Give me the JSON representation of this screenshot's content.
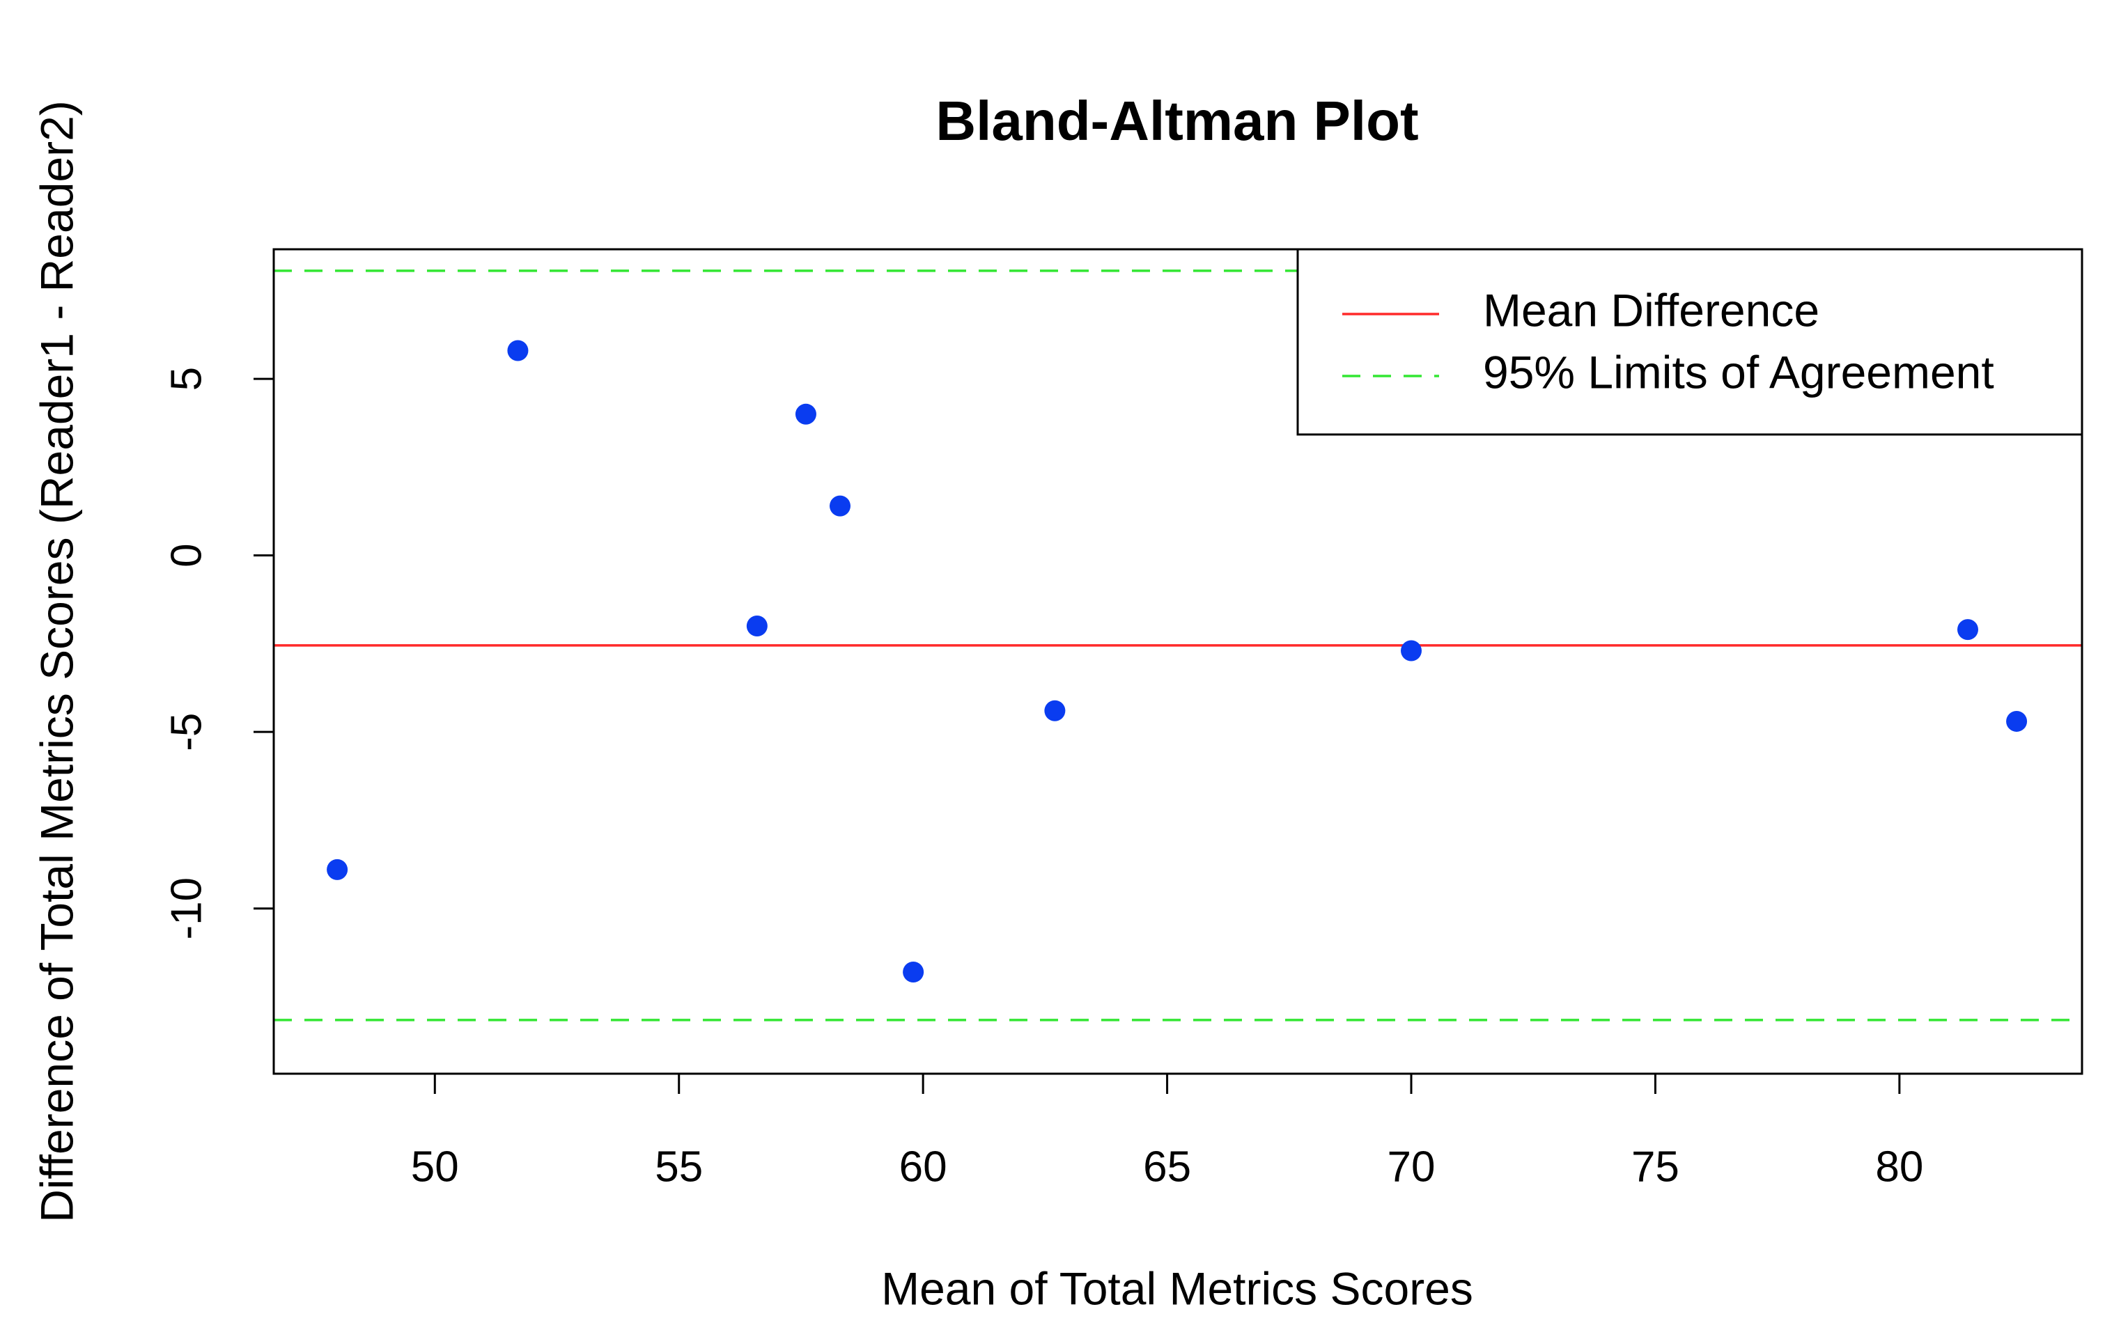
{
  "chart_data": {
    "type": "scatter",
    "title": "Bland-Altman Plot",
    "x_label": "Mean of Total Metrics Scores",
    "y_label": "Difference of Total Metrics Scores (Reader1 - Reader2)",
    "x": [
      48.0,
      51.7,
      56.6,
      57.6,
      58.3,
      59.8,
      62.7,
      70.0,
      81.4,
      82.4
    ],
    "values": [
      -8.9,
      5.8,
      -2.0,
      4.0,
      1.4,
      -11.8,
      -4.4,
      -2.7,
      -2.1,
      -4.7
    ],
    "color": "#0a3cf0",
    "hlines": [
      {
        "name": "Mean Difference",
        "value": -2.55,
        "color": "#ff2a2a",
        "dash": false
      },
      {
        "name": "95% Limits of Agreement",
        "value": 8.06,
        "color": "#33e633",
        "dash": true
      },
      {
        "value": -13.16,
        "color": "#33e633",
        "dash": true
      }
    ],
    "xlim": [
      46.7,
      83.74
    ],
    "ylim": [
      -14.68,
      8.67
    ],
    "xticks": [
      50,
      55,
      60,
      65,
      70,
      75,
      80
    ],
    "yticks": [
      -10,
      -5,
      0,
      5
    ],
    "legend": "topright"
  }
}
